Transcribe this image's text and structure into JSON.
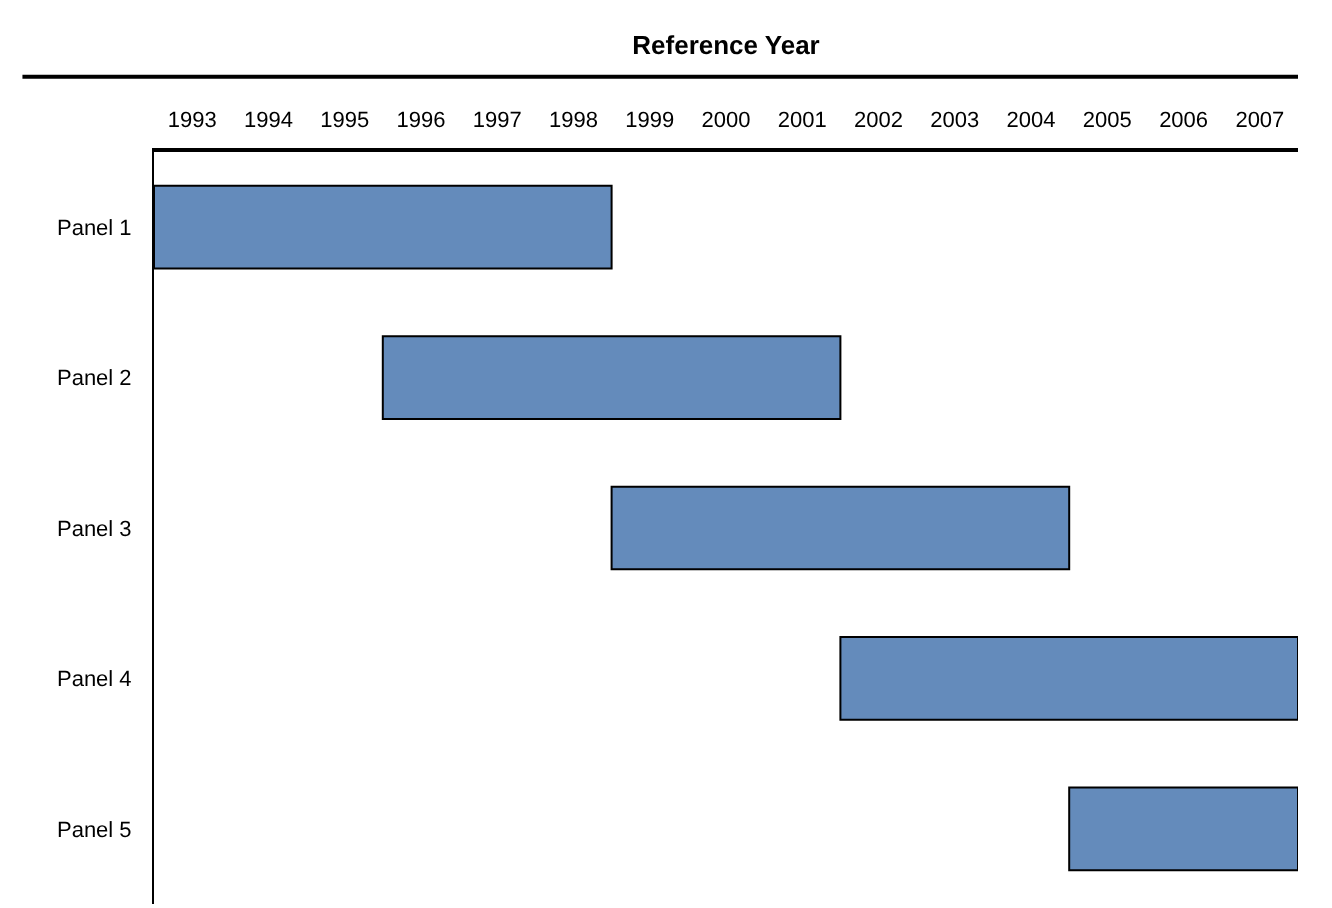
{
  "chart_data": {
    "type": "bar",
    "orientation": "horizontal",
    "xlabel": "Reference Year",
    "categories": [
      "Panel 1",
      "Panel 2",
      "Panel 3",
      "Panel 4",
      "Panel 5"
    ],
    "base": [
      1993,
      1996,
      1999,
      2002,
      2005
    ],
    "values": [
      6,
      6,
      6,
      6,
      3
    ],
    "color": "#648bbb",
    "xlim": [
      1993,
      2008
    ],
    "xticks": [
      {
        "value": 1993.5,
        "label": "1993"
      },
      {
        "value": 1994.5,
        "label": "1994"
      },
      {
        "value": 1995.5,
        "label": "1995"
      },
      {
        "value": 1996.5,
        "label": "1996"
      },
      {
        "value": 1997.5,
        "label": "1997"
      },
      {
        "value": 1998.5,
        "label": "1998"
      },
      {
        "value": 1999.5,
        "label": "1999"
      },
      {
        "value": 2000.5,
        "label": "2000"
      },
      {
        "value": 2001.5,
        "label": "2001"
      },
      {
        "value": 2002.5,
        "label": "2002"
      },
      {
        "value": 2003.5,
        "label": "2003"
      },
      {
        "value": 2004.5,
        "label": "2004"
      },
      {
        "value": 2005.5,
        "label": "2005"
      },
      {
        "value": 2006.5,
        "label": "2006"
      },
      {
        "value": 2007.5,
        "label": "2007"
      }
    ],
    "grid": false,
    "legend": false
  }
}
